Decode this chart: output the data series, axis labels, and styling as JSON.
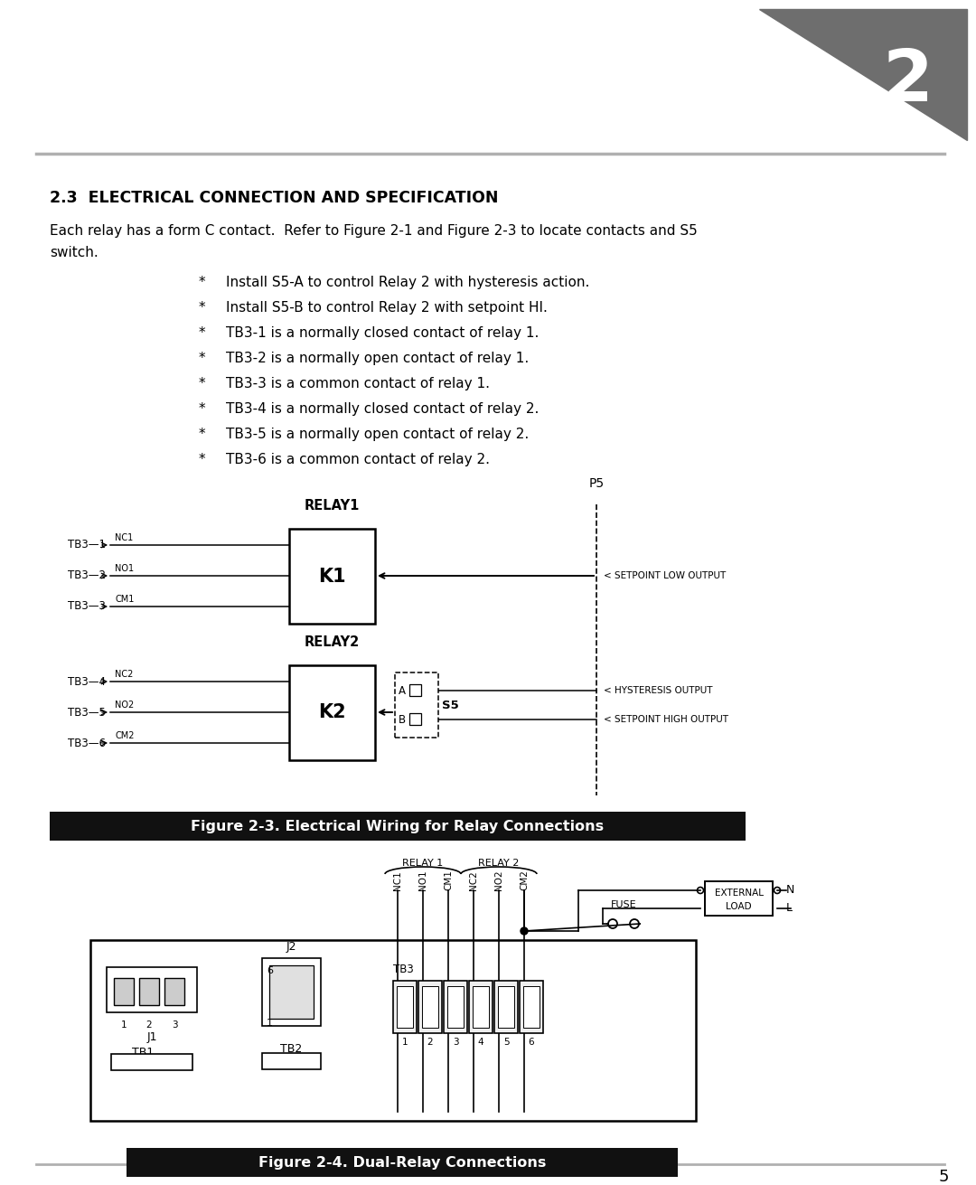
{
  "page_bg": "#ffffff",
  "page_number": "5",
  "section_title": "2.3  ELECTRICAL CONNECTION AND SPECIFICATION",
  "intro_line1": "Each relay has a form C contact.  Refer to Figure 2-1 and Figure 2-3 to locate contacts and S5",
  "intro_line2": "switch.",
  "bullet_points": [
    "Install S5-A to control Relay 2 with hysteresis action.",
    "Install S5-B to control Relay 2 with setpoint HI.",
    "TB3-1 is a normally closed contact of relay 1.",
    "TB3-2 is a normally open contact of relay 1.",
    "TB3-3 is a common contact of relay 1.",
    "TB3-4 is a normally closed contact of relay 2.",
    "TB3-5 is a normally open contact of relay 2.",
    "TB3-6 is a common contact of relay 2."
  ],
  "fig3_caption": "Figure 2-3. Electrical Wiring for Relay Connections",
  "fig4_caption": "Figure 2-4. Dual-Relay Connections",
  "chapter_num": "2",
  "caption_bg": "#111111",
  "caption_fg": "#ffffff",
  "tri_color": "#6e6e6e"
}
